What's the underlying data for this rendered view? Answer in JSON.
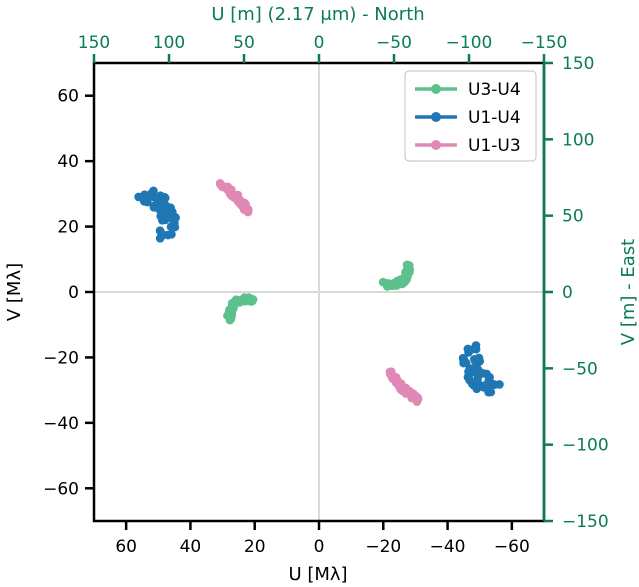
{
  "chart_data": {
    "type": "scatter",
    "xlabel": "U [Mλ]",
    "ylabel": "V [Mλ]",
    "xlim": [
      70,
      -70
    ],
    "ylim": [
      -70,
      70
    ],
    "x_ticks": [
      60,
      40,
      20,
      0,
      -20,
      -40,
      -60
    ],
    "y_ticks": [
      -60,
      -40,
      -20,
      0,
      20,
      40,
      60
    ],
    "x_tick_labels": [
      "60",
      "40",
      "20",
      "0",
      "−20",
      "−40",
      "−60"
    ],
    "y_tick_labels": [
      "−60",
      "−40",
      "−20",
      "0",
      "20",
      "40",
      "60"
    ],
    "top_axis": {
      "label": "U [m] (2.17 μm) - North",
      "lim": [
        150,
        -150
      ],
      "ticks": [
        150,
        100,
        50,
        0,
        -50,
        -100,
        -150
      ],
      "tick_labels": [
        "150",
        "100",
        "50",
        "0",
        "−50",
        "−100",
        "−150"
      ],
      "color": "#0a7c56"
    },
    "right_axis": {
      "label": "V [m] - East",
      "lim": [
        -150,
        150
      ],
      "ticks": [
        -150,
        -100,
        -50,
        0,
        50,
        100,
        150
      ],
      "tick_labels": [
        "−150",
        "−100",
        "−50",
        "0",
        "50",
        "100",
        "150"
      ],
      "color": "#0a7c56"
    },
    "zero_lines": true,
    "legend_position": "top-right",
    "series": [
      {
        "name": "U3-U4",
        "color": "#5cc18c",
        "arcs": [
          {
            "start": [
              -20.5,
              2.3
            ],
            "end": [
              -28.0,
              8.2
            ],
            "bulge": 2.5,
            "thickness": 1.8
          },
          {
            "start": [
              20.5,
              -2.3
            ],
            "end": [
              28.0,
              -8.2
            ],
            "bulge": 2.5,
            "thickness": 1.8
          }
        ]
      },
      {
        "name": "U1-U4",
        "color": "#1f77b4",
        "arcs": [
          {
            "start": [
              -47.0,
              -17.0
            ],
            "end": [
              -54.5,
              -30.0
            ],
            "bulge": 2.8,
            "thickness": 6.0
          },
          {
            "start": [
              47.0,
              17.0
            ],
            "end": [
              54.5,
              30.0
            ],
            "bulge": 2.8,
            "thickness": 6.0
          }
        ]
      },
      {
        "name": "U1-U3",
        "color": "#e189b6",
        "arcs": [
          {
            "start": [
              -22.0,
              -24.5
            ],
            "end": [
              -31.0,
              -33.0
            ],
            "bulge": 0.8,
            "thickness": 1.5
          },
          {
            "start": [
              22.0,
              24.5
            ],
            "end": [
              31.0,
              33.0
            ],
            "bulge": 0.8,
            "thickness": 1.5
          }
        ]
      }
    ]
  }
}
